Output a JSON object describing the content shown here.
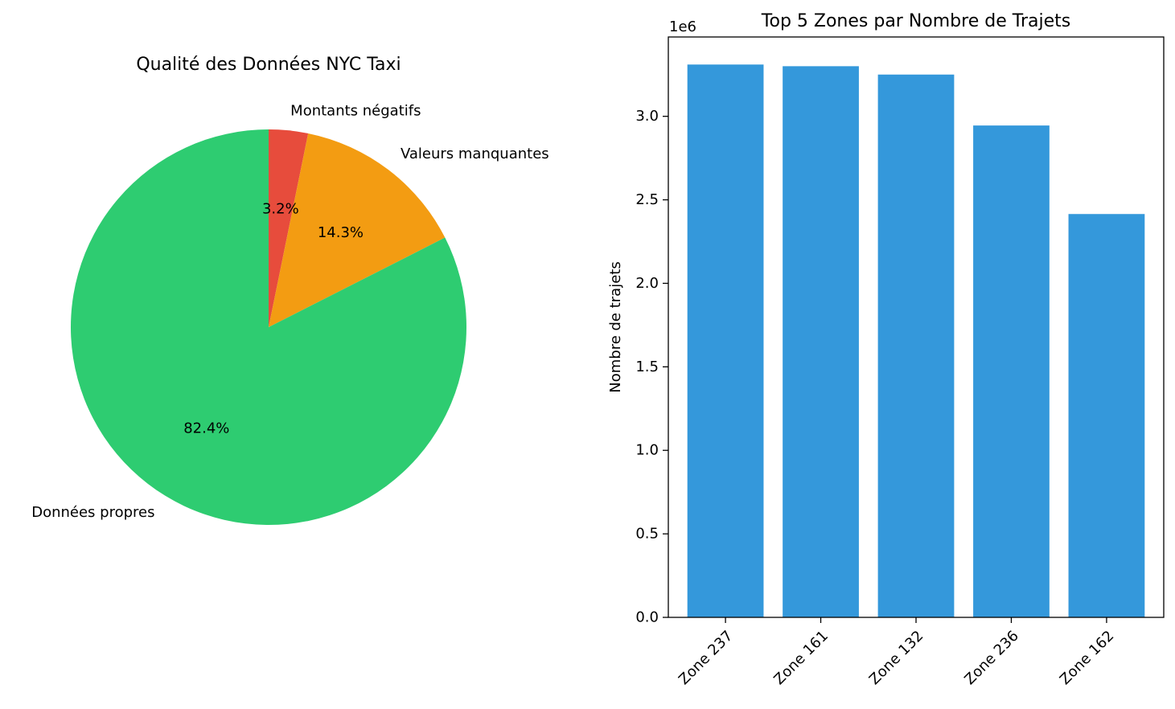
{
  "chart_data": [
    {
      "type": "pie",
      "title": "Qualité des Données NYC Taxi",
      "slices": [
        {
          "label": "Montants négatifs",
          "value": 3.2,
          "pct_label": "3.2%",
          "color": "#e74c3c"
        },
        {
          "label": "Valeurs manquantes",
          "value": 14.3,
          "pct_label": "14.3%",
          "color": "#f39c12"
        },
        {
          "label": "Données propres",
          "value": 82.4,
          "pct_label": "82.4%",
          "color": "#2ecc71"
        }
      ],
      "start_angle": "top",
      "direction": "clockwise"
    },
    {
      "type": "bar",
      "title": "Top 5 Zones par Nombre de Trajets",
      "categories": [
        "Zone 237",
        "Zone 161",
        "Zone 132",
        "Zone 236",
        "Zone 162"
      ],
      "values": [
        3310000,
        3300000,
        3250000,
        2945000,
        2415000
      ],
      "ylabel": "Nombre de trajets",
      "xlabel": "",
      "ylim": [
        0,
        3475000
      ],
      "yticks": [
        0,
        500000,
        1000000,
        1500000,
        2000000,
        2500000,
        3000000
      ],
      "ytick_labels": [
        "0.0",
        "0.5",
        "1.0",
        "1.5",
        "2.0",
        "2.5",
        "3.0"
      ],
      "offset_label": "1e6",
      "color": "#3498db",
      "grid": false
    }
  ]
}
